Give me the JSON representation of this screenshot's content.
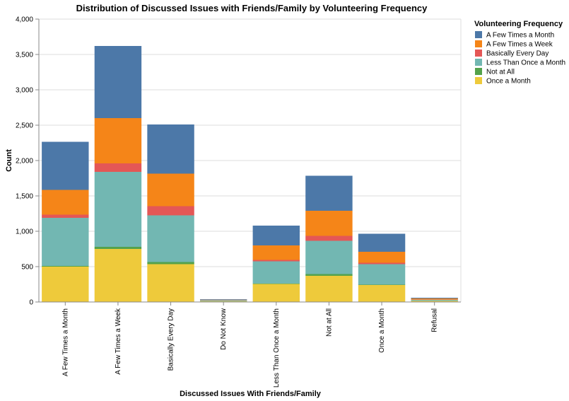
{
  "chart_data": {
    "type": "bar",
    "stacked": true,
    "title": "Distribution of Discussed Issues with Friends/Family by Volunteering Frequency",
    "xlabel": "Discussed Issues With Friends/Family",
    "ylabel": "Count",
    "ylim": [
      0,
      4000
    ],
    "yticks": [
      0,
      500,
      1000,
      1500,
      2000,
      2500,
      3000,
      3500,
      4000
    ],
    "ytick_labels": [
      "0",
      "500",
      "1,000",
      "1,500",
      "2,000",
      "2,500",
      "3,000",
      "3,500",
      "4,000"
    ],
    "grid": true,
    "legend_position": "right",
    "legend_title": "Volunteering Frequency",
    "categories": [
      "A Few Times a Month",
      "A Few Times a Week",
      "Basically Every Day",
      "Do Not Know",
      "Less Than Once a Month",
      "Not at All",
      "Once a Month",
      "Refusal"
    ],
    "series": [
      {
        "name": "Once a Month",
        "color": "#eeca3b",
        "values": [
          500,
          750,
          535,
          10,
          255,
          370,
          240,
          15
        ]
      },
      {
        "name": "Not at All",
        "color": "#54a24b",
        "values": [
          10,
          30,
          30,
          2,
          5,
          25,
          5,
          2
        ]
      },
      {
        "name": "Less Than Once a Month",
        "color": "#72b7b2",
        "values": [
          680,
          1060,
          660,
          12,
          315,
          470,
          290,
          15
        ]
      },
      {
        "name": "Basically Every Day",
        "color": "#e45756",
        "values": [
          45,
          120,
          130,
          2,
          20,
          70,
          20,
          3
        ]
      },
      {
        "name": "A Few Times a Week",
        "color": "#f58518",
        "values": [
          350,
          640,
          460,
          6,
          205,
          355,
          155,
          15
        ]
      },
      {
        "name": "A Few Times a Month",
        "color": "#4c78a8",
        "values": [
          680,
          1020,
          695,
          8,
          280,
          495,
          255,
          10
        ]
      }
    ],
    "legend_order": [
      "A Few Times a Month",
      "A Few Times a Week",
      "Basically Every Day",
      "Less Than Once a Month",
      "Not at All",
      "Once a Month"
    ]
  }
}
